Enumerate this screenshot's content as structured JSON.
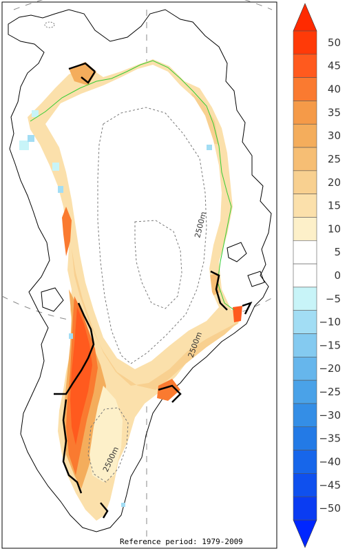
{
  "footnote": "Reference period: 1979-2009",
  "contour_labels": [
    "2500m",
    "2500m",
    "2500m"
  ],
  "colorbar": {
    "ticks": [
      "50",
      "45",
      "40",
      "35",
      "30",
      "25",
      "20",
      "15",
      "10",
      "5",
      "0",
      "−5",
      "−10",
      "−15",
      "−20",
      "−25",
      "−30",
      "−35",
      "−40",
      "−45",
      "−50"
    ],
    "colors": [
      "#ff3a08",
      "#ff5a1e",
      "#fa7a30",
      "#f59a48",
      "#f4ad5c",
      "#f6be74",
      "#f8d090",
      "#fbe0ab",
      "#fdf0c9",
      "#ffffff",
      "#ffffff",
      "#c8f4f8",
      "#a2ddf4",
      "#84caf0",
      "#66b6ec",
      "#4aa2e8",
      "#348ee6",
      "#237ae6",
      "#1766ea",
      "#0f50ee",
      "#0a3cf2"
    ],
    "top_arrow_color": "#ff2a00",
    "bottom_arrow_color": "#0026ff"
  },
  "map_colors": {
    "coast": "#000000",
    "ice_margin": "#33cc33",
    "contour": "#777777",
    "grid": "#888888"
  }
}
